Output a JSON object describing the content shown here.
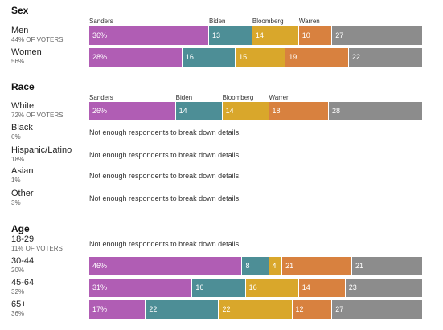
{
  "candidates": [
    "Sanders",
    "Biden",
    "Bloomberg",
    "Warren"
  ],
  "colors": {
    "Sanders": "#b05db4",
    "Biden": "#4d8e96",
    "Bloomberg": "#d9a72b",
    "Warren": "#d8813f",
    "Other": "#8c8c8c"
  },
  "sections": [
    {
      "title": "Sex",
      "groups": [
        {
          "name": "Men",
          "share": "44% OF VOTERS",
          "values": [
            36,
            13,
            14,
            10,
            27
          ],
          "labels": [
            "36%",
            "13",
            "14",
            "10",
            "27"
          ]
        },
        {
          "name": "Women",
          "share": "56%",
          "values": [
            28,
            16,
            15,
            19,
            22
          ],
          "labels": [
            "28%",
            "16",
            "15",
            "19",
            "22"
          ]
        }
      ]
    },
    {
      "title": "Race",
      "groups": [
        {
          "name": "White",
          "share": "72% OF VOTERS",
          "values": [
            26,
            14,
            14,
            18,
            28
          ],
          "labels": [
            "26%",
            "14",
            "14",
            "18",
            "28"
          ]
        },
        {
          "name": "Black",
          "share": "6%",
          "note": "Not enough respondents to break down details."
        },
        {
          "name": "Hispanic/Latino",
          "share": "18%",
          "note": "Not enough respondents to break down details."
        },
        {
          "name": "Asian",
          "share": "1%",
          "note": "Not enough respondents to break down details."
        },
        {
          "name": "Other",
          "share": "3%",
          "note": "Not enough respondents to break down details."
        }
      ]
    },
    {
      "title": "Age",
      "groups": [
        {
          "name": "18-29",
          "share": "11% OF VOTERS",
          "note": "Not enough respondents to break down details."
        },
        {
          "name": "30-44",
          "share": "20%",
          "values": [
            46,
            8,
            4,
            21,
            21
          ],
          "labels": [
            "46%",
            "8",
            "4",
            "21",
            "21"
          ]
        },
        {
          "name": "45-64",
          "share": "32%",
          "values": [
            31,
            16,
            16,
            14,
            23
          ],
          "labels": [
            "31%",
            "16",
            "16",
            "14",
            "23"
          ]
        },
        {
          "name": "65+",
          "share": "36%",
          "values": [
            17,
            22,
            22,
            12,
            27
          ],
          "labels": [
            "17%",
            "22",
            "22",
            "12",
            "27"
          ]
        }
      ]
    }
  ],
  "chart_data": {
    "type": "bar",
    "stacked": true,
    "orientation": "horizontal",
    "series_names": [
      "Sanders",
      "Biden",
      "Bloomberg",
      "Warren"
    ],
    "rows": [
      {
        "section": "Sex",
        "group": "Men",
        "values": [
          36,
          13,
          14,
          10,
          27
        ]
      },
      {
        "section": "Sex",
        "group": "Women",
        "values": [
          28,
          16,
          15,
          19,
          22
        ]
      },
      {
        "section": "Race",
        "group": "White",
        "values": [
          26,
          14,
          14,
          18,
          28
        ]
      },
      {
        "section": "Age",
        "group": "30-44",
        "values": [
          46,
          8,
          4,
          21,
          21
        ]
      },
      {
        "section": "Age",
        "group": "45-64",
        "values": [
          31,
          16,
          16,
          14,
          23
        ]
      },
      {
        "section": "Age",
        "group": "65+",
        "values": [
          17,
          22,
          22,
          12,
          27
        ]
      }
    ]
  }
}
